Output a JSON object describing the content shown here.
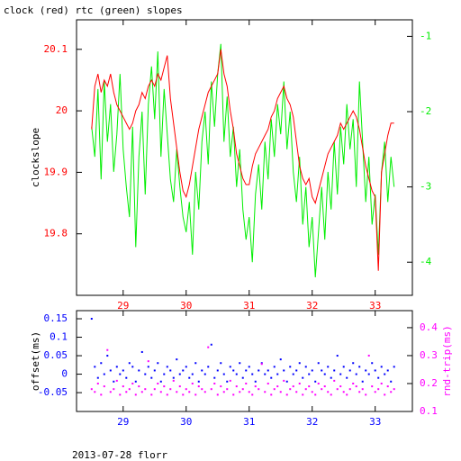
{
  "chart_data": [
    {
      "type": "line",
      "title": "clock (red) rtc (green) slopes",
      "y_label": "clockslope",
      "x": [
        28.5,
        28.55,
        28.6,
        28.65,
        28.7,
        28.75,
        28.8,
        28.85,
        28.9,
        28.95,
        29,
        29.05,
        29.1,
        29.15,
        29.2,
        29.25,
        29.3,
        29.35,
        29.4,
        29.45,
        29.5,
        29.55,
        29.6,
        29.65,
        29.7,
        29.75,
        29.8,
        29.85,
        29.9,
        29.95,
        30,
        30.05,
        30.1,
        30.15,
        30.2,
        30.25,
        30.3,
        30.35,
        30.4,
        30.45,
        30.5,
        30.55,
        30.6,
        30.65,
        30.7,
        30.75,
        30.8,
        30.85,
        30.9,
        30.95,
        31,
        31.05,
        31.1,
        31.15,
        31.2,
        31.25,
        31.3,
        31.35,
        31.4,
        31.45,
        31.5,
        31.55,
        31.6,
        31.65,
        31.7,
        31.75,
        31.8,
        31.85,
        31.9,
        31.95,
        32,
        32.05,
        32.1,
        32.15,
        32.2,
        32.25,
        32.3,
        32.35,
        32.4,
        32.45,
        32.5,
        32.55,
        32.6,
        32.65,
        32.7,
        32.75,
        32.8,
        32.85,
        32.9,
        32.95,
        33,
        33.05,
        33.1,
        33.15,
        33.2,
        33.25,
        33.3
      ],
      "xlim": [
        28.26,
        33.59
      ],
      "xticks": [
        29,
        30,
        31,
        32,
        33
      ],
      "ylim": [
        19.7,
        20.148
      ],
      "yticks": [
        19.8,
        19.9,
        20,
        20.1
      ],
      "y2lim": [
        -4.44,
        -0.78
      ],
      "y2ticks": [
        -4,
        -3,
        -2,
        -1
      ],
      "series": [
        {
          "color": "#00ee00",
          "axis": "y2",
          "values": [
            -2.2,
            -2.6,
            -1.7,
            -2.9,
            -1.6,
            -2.4,
            -1.9,
            -2.8,
            -2.3,
            -1.5,
            -2.5,
            -3.0,
            -3.4,
            -2.2,
            -3.8,
            -2.6,
            -2.0,
            -3.1,
            -1.9,
            -1.4,
            -2.1,
            -1.2,
            -2.6,
            -1.7,
            -2.3,
            -2.9,
            -3.2,
            -2.5,
            -3.0,
            -3.4,
            -3.6,
            -3.2,
            -3.9,
            -2.8,
            -3.3,
            -2.4,
            -2.0,
            -2.7,
            -1.6,
            -2.2,
            -1.5,
            -1.1,
            -2.4,
            -1.8,
            -2.6,
            -2.2,
            -3.0,
            -2.5,
            -3.3,
            -3.7,
            -3.4,
            -4.0,
            -3.1,
            -2.7,
            -3.3,
            -2.4,
            -2.9,
            -2.1,
            -2.6,
            -1.9,
            -2.3,
            -1.6,
            -2.5,
            -2.0,
            -2.8,
            -3.2,
            -2.6,
            -3.5,
            -3.0,
            -3.8,
            -3.4,
            -4.2,
            -3.6,
            -3.0,
            -3.7,
            -2.8,
            -3.3,
            -2.4,
            -3.1,
            -2.2,
            -2.7,
            -1.9,
            -2.5,
            -2.1,
            -3.0,
            -1.6,
            -2.4,
            -3.2,
            -2.6,
            -3.5,
            -3.1,
            -3.9,
            -2.8,
            -2.4,
            -3.2,
            -2.6,
            -3.0
          ]
        },
        {
          "color": "#ff0000",
          "axis": "y",
          "values": [
            19.97,
            20.04,
            20.06,
            20.03,
            20.05,
            20.04,
            20.06,
            20.03,
            20.01,
            20.0,
            19.99,
            19.98,
            19.97,
            19.98,
            20.0,
            20.01,
            20.03,
            20.02,
            20.04,
            20.05,
            20.04,
            20.06,
            20.05,
            20.07,
            20.09,
            20.02,
            19.98,
            19.94,
            19.9,
            19.87,
            19.86,
            19.88,
            19.91,
            19.94,
            19.97,
            19.99,
            20.01,
            20.03,
            20.04,
            20.05,
            20.06,
            20.1,
            20.06,
            20.04,
            20.0,
            19.97,
            19.93,
            19.91,
            19.89,
            19.88,
            19.88,
            19.91,
            19.93,
            19.94,
            19.95,
            19.96,
            19.97,
            19.99,
            20.0,
            20.02,
            20.03,
            20.04,
            20.02,
            20.01,
            19.99,
            19.95,
            19.91,
            19.89,
            19.88,
            19.89,
            19.86,
            19.85,
            19.87,
            19.89,
            19.91,
            19.93,
            19.94,
            19.95,
            19.96,
            19.98,
            19.97,
            19.98,
            19.99,
            20.0,
            19.99,
            19.97,
            19.94,
            19.91,
            19.89,
            19.87,
            19.86,
            19.74,
            19.9,
            19.93,
            19.96,
            19.98,
            19.98
          ]
        }
      ]
    },
    {
      "type": "scatter",
      "y_label": "offset(ms)",
      "y2_label": "rnd-trip(ms)",
      "x": [
        28.5,
        28.55,
        28.6,
        28.65,
        28.7,
        28.75,
        28.8,
        28.85,
        28.9,
        28.95,
        29,
        29.05,
        29.1,
        29.15,
        29.2,
        29.25,
        29.3,
        29.35,
        29.4,
        29.45,
        29.5,
        29.55,
        29.6,
        29.65,
        29.7,
        29.75,
        29.8,
        29.85,
        29.9,
        29.95,
        30,
        30.05,
        30.1,
        30.15,
        30.2,
        30.25,
        30.3,
        30.35,
        30.4,
        30.45,
        30.5,
        30.55,
        30.6,
        30.65,
        30.7,
        30.75,
        30.8,
        30.85,
        30.9,
        30.95,
        31,
        31.05,
        31.1,
        31.15,
        31.2,
        31.25,
        31.3,
        31.35,
        31.4,
        31.45,
        31.5,
        31.55,
        31.6,
        31.65,
        31.7,
        31.75,
        31.8,
        31.85,
        31.9,
        31.95,
        32,
        32.05,
        32.1,
        32.15,
        32.2,
        32.25,
        32.3,
        32.35,
        32.4,
        32.45,
        32.5,
        32.55,
        32.6,
        32.65,
        32.7,
        32.75,
        32.8,
        32.85,
        32.9,
        32.95,
        33,
        33.05,
        33.1,
        33.15,
        33.2,
        33.25,
        33.3
      ],
      "xlim": [
        28.26,
        33.59
      ],
      "xticks": [
        29,
        30,
        31,
        32,
        33
      ],
      "ylim": [
        -0.101,
        0.172
      ],
      "yticks": [
        -0.05,
        0,
        0.05,
        0.1,
        0.15
      ],
      "y2lim": [
        0.1,
        0.461
      ],
      "y2ticks": [
        0.1,
        0.2,
        0.3,
        0.4
      ],
      "series": [
        {
          "color": "#0000ff",
          "axis": "y",
          "values": [
            0.15,
            0.02,
            -0.01,
            0.03,
            0.0,
            0.05,
            0.01,
            -0.02,
            0.02,
            0.0,
            0.01,
            -0.01,
            0.03,
            0.02,
            -0.02,
            0.01,
            0.06,
            0.0,
            0.02,
            -0.01,
            0.01,
            0.03,
            -0.02,
            0.0,
            0.02,
            0.01,
            -0.01,
            0.04,
            0.0,
            0.01,
            0.02,
            -0.01,
            0.0,
            0.03,
            -0.02,
            0.01,
            0.0,
            0.02,
            0.08,
            -0.01,
            0.01,
            0.03,
            0.0,
            -0.02,
            0.02,
            0.01,
            0.0,
            0.03,
            -0.01,
            0.01,
            0.02,
            0.0,
            -0.02,
            0.01,
            0.03,
            0.0,
            0.01,
            -0.01,
            0.02,
            0.0,
            0.04,
            0.01,
            -0.02,
            0.02,
            0.0,
            0.01,
            0.03,
            -0.01,
            0.02,
            0.0,
            0.01,
            -0.02,
            0.03,
            0.01,
            0.0,
            0.02,
            -0.01,
            0.01,
            0.05,
            0.0,
            0.02,
            -0.01,
            0.01,
            0.03,
            0.0,
            0.02,
            -0.02,
            0.01,
            0.0,
            0.03,
            0.01,
            -0.01,
            0.02,
            0.0,
            0.01,
            -0.02,
            0.02
          ]
        },
        {
          "color": "#ff00ff",
          "axis": "y2",
          "values": [
            0.18,
            0.17,
            0.2,
            0.16,
            0.19,
            0.32,
            0.17,
            0.18,
            0.21,
            0.16,
            0.19,
            0.17,
            0.18,
            0.2,
            0.16,
            0.19,
            0.17,
            0.18,
            0.28,
            0.16,
            0.18,
            0.2,
            0.17,
            0.19,
            0.16,
            0.18,
            0.21,
            0.17,
            0.19,
            0.16,
            0.18,
            0.17,
            0.2,
            0.16,
            0.19,
            0.18,
            0.17,
            0.33,
            0.18,
            0.2,
            0.16,
            0.19,
            0.17,
            0.18,
            0.21,
            0.16,
            0.19,
            0.17,
            0.18,
            0.2,
            0.17,
            0.16,
            0.19,
            0.18,
            0.27,
            0.17,
            0.2,
            0.16,
            0.18,
            0.19,
            0.17,
            0.21,
            0.16,
            0.18,
            0.19,
            0.17,
            0.2,
            0.16,
            0.18,
            0.19,
            0.17,
            0.16,
            0.2,
            0.18,
            0.19,
            0.17,
            0.16,
            0.21,
            0.18,
            0.19,
            0.17,
            0.16,
            0.18,
            0.2,
            0.19,
            0.17,
            0.18,
            0.16,
            0.3,
            0.19,
            0.17,
            0.18,
            0.2,
            0.16,
            0.19,
            0.17,
            0.18
          ]
        }
      ]
    }
  ],
  "footer": "2013-07-28 florr"
}
